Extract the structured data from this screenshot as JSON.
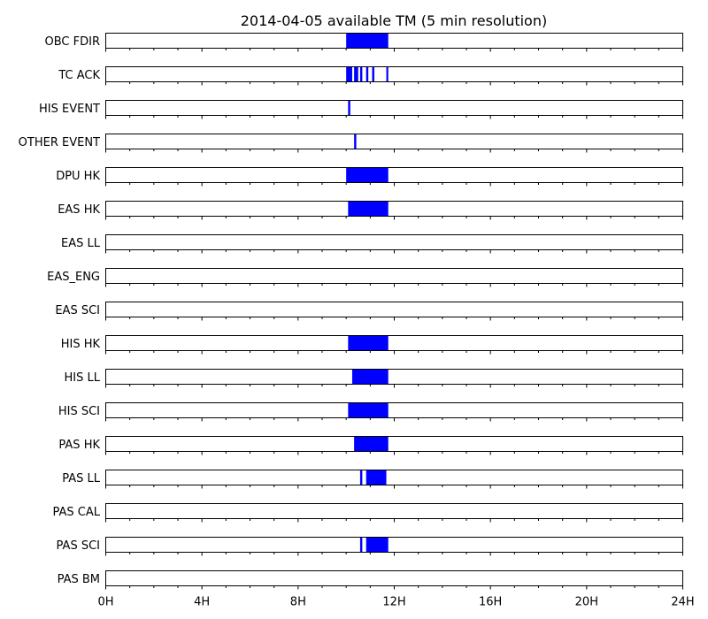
{
  "chart_data": {
    "type": "timeline",
    "title": "2014-04-05 available TM (5 min resolution)",
    "x_unit": "hours",
    "xlim": [
      0,
      24
    ],
    "x_ticks": [
      0,
      4,
      8,
      12,
      16,
      20,
      24
    ],
    "x_tick_labels": [
      "0H",
      "4H",
      "8H",
      "12H",
      "16H",
      "20H",
      "24H"
    ],
    "x_minor_step_hours": 1,
    "grid": false,
    "bar_color": "#0000ff",
    "rows": [
      {
        "name": "OBC FDIR",
        "intervals": [
          [
            10.0,
            11.75
          ]
        ]
      },
      {
        "name": "TC ACK",
        "intervals": [
          [
            10.0,
            10.25
          ],
          [
            10.33,
            10.5
          ],
          [
            10.58,
            10.67
          ],
          [
            10.83,
            10.92
          ],
          [
            11.08,
            11.17
          ],
          [
            11.67,
            11.75
          ]
        ]
      },
      {
        "name": "HIS EVENT",
        "intervals": [
          [
            10.08,
            10.17
          ]
        ]
      },
      {
        "name": "OTHER EVENT",
        "intervals": [
          [
            10.33,
            10.42
          ]
        ]
      },
      {
        "name": "DPU HK",
        "intervals": [
          [
            10.0,
            11.75
          ]
        ]
      },
      {
        "name": "EAS HK",
        "intervals": [
          [
            10.08,
            11.75
          ]
        ]
      },
      {
        "name": "EAS LL",
        "intervals": []
      },
      {
        "name": "EAS_ENG",
        "intervals": []
      },
      {
        "name": "EAS SCI",
        "intervals": []
      },
      {
        "name": "HIS HK",
        "intervals": [
          [
            10.08,
            11.75
          ]
        ]
      },
      {
        "name": "HIS LL",
        "intervals": [
          [
            10.25,
            11.75
          ]
        ]
      },
      {
        "name": "HIS SCI",
        "intervals": [
          [
            10.08,
            11.75
          ]
        ]
      },
      {
        "name": "PAS HK",
        "intervals": [
          [
            10.33,
            11.75
          ]
        ]
      },
      {
        "name": "PAS LL",
        "intervals": [
          [
            10.58,
            10.67
          ],
          [
            10.83,
            11.67
          ]
        ]
      },
      {
        "name": "PAS CAL",
        "intervals": []
      },
      {
        "name": "PAS SCI",
        "intervals": [
          [
            10.58,
            10.67
          ],
          [
            10.83,
            11.75
          ]
        ]
      },
      {
        "name": "PAS BM",
        "intervals": []
      }
    ]
  }
}
